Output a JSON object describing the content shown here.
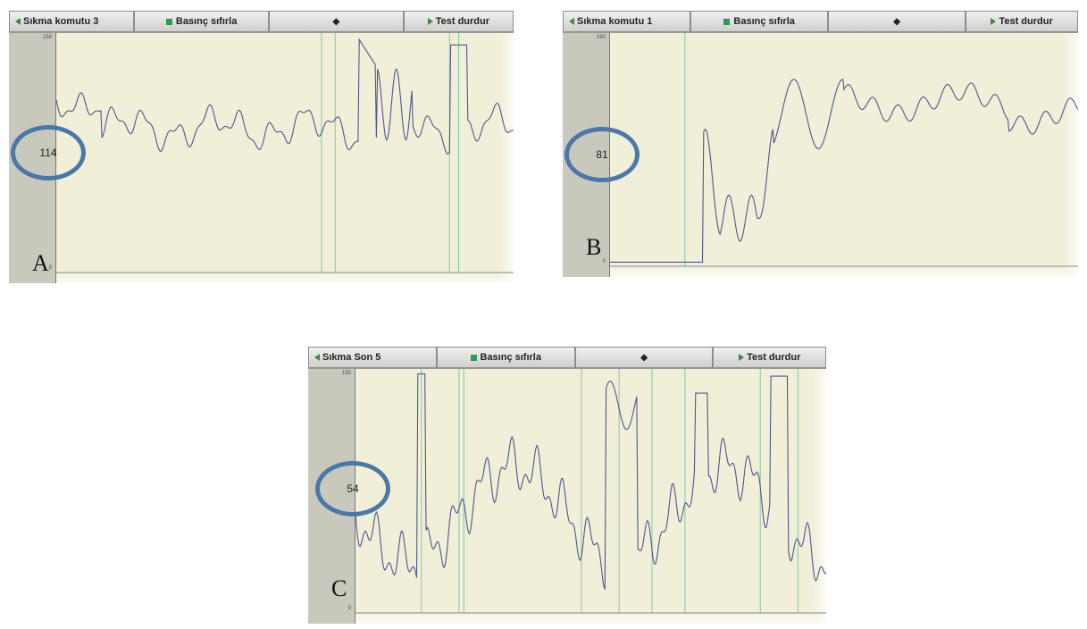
{
  "panels": [
    {
      "label": "A",
      "reading": "114",
      "y_max": "150",
      "y_min": "0",
      "toolbar": {
        "left": "Sıkma komutu 3",
        "center": "Basınç sıfırla",
        "marker": "◆",
        "right": "Test durdur"
      }
    },
    {
      "label": "B",
      "reading": "81",
      "y_max": "150",
      "y_min": "0",
      "toolbar": {
        "left": "Sıkma komutu 1",
        "center": "Basınç sıfırla",
        "marker": "◆",
        "right": "Test durdur"
      }
    },
    {
      "label": "C",
      "reading": "54",
      "y_max": "150",
      "y_min": "0",
      "toolbar": {
        "left": "Sıkma Son 5",
        "center": "Basınç sıfırla",
        "marker": "◆",
        "right": "Test durdur"
      }
    }
  ]
}
